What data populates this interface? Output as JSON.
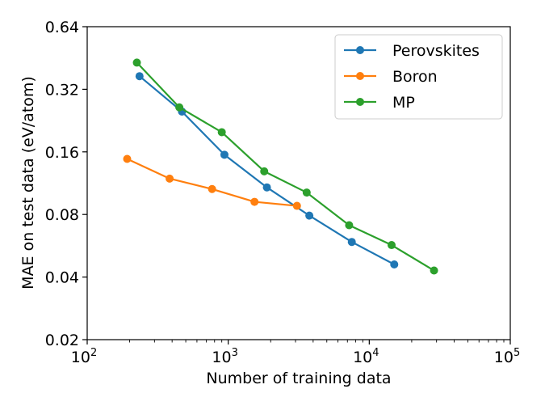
{
  "chart_data": {
    "type": "line",
    "title": "",
    "xlabel": "Number of training data",
    "ylabel": "MAE on test data (eV/atom)",
    "xscale": "log",
    "yscale": "log2",
    "xlim": [
      100,
      100000
    ],
    "ylim": [
      0.02,
      0.64
    ],
    "x_ticks": [
      {
        "value": 100,
        "base": "10",
        "exp": "2"
      },
      {
        "value": 1000,
        "base": "10",
        "exp": "3"
      },
      {
        "value": 10000,
        "base": "10",
        "exp": "4"
      },
      {
        "value": 100000,
        "base": "10",
        "exp": "5"
      }
    ],
    "y_ticks": [
      {
        "value": 0.02,
        "label": "0.02"
      },
      {
        "value": 0.04,
        "label": "0.04"
      },
      {
        "value": 0.08,
        "label": "0.08"
      },
      {
        "value": 0.16,
        "label": "0.16"
      },
      {
        "value": 0.32,
        "label": "0.32"
      },
      {
        "value": 0.64,
        "label": "0.64"
      }
    ],
    "grid": false,
    "legend_position": "top-right",
    "series": [
      {
        "name": "Perovskites",
        "color": "#1f77b4",
        "x": [
          235,
          470,
          940,
          1880,
          3760,
          7520,
          15040
        ],
        "y": [
          0.37,
          0.25,
          0.155,
          0.108,
          0.079,
          0.059,
          0.046
        ]
      },
      {
        "name": "Boron",
        "color": "#ff7f0e",
        "x": [
          192,
          384,
          768,
          1536,
          3072
        ],
        "y": [
          0.148,
          0.119,
          0.106,
          0.092,
          0.088
        ]
      },
      {
        "name": "MP",
        "color": "#2ca02c",
        "x": [
          225,
          450,
          900,
          1800,
          3600,
          7200,
          14400,
          28800
        ],
        "y": [
          0.43,
          0.262,
          0.199,
          0.129,
          0.102,
          0.071,
          0.057,
          0.043
        ]
      }
    ]
  }
}
